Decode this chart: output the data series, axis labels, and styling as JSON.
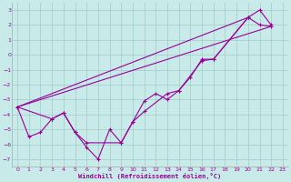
{
  "xlabel": "Windchill (Refroidissement éolien,°C)",
  "background_color": "#c8eae8",
  "grid_color": "#a0ccc8",
  "line_color": "#990099",
  "xlim": [
    -0.5,
    23.5
  ],
  "ylim": [
    -7.5,
    3.5
  ],
  "xticks": [
    0,
    1,
    2,
    3,
    4,
    5,
    6,
    7,
    8,
    9,
    10,
    11,
    12,
    13,
    14,
    15,
    16,
    17,
    18,
    19,
    20,
    21,
    22,
    23
  ],
  "yticks": [
    -7,
    -6,
    -5,
    -4,
    -3,
    -2,
    -1,
    0,
    1,
    2,
    3
  ],
  "line1_x": [
    0,
    1,
    2,
    3,
    4,
    5,
    6,
    7,
    8,
    9,
    10,
    11,
    12,
    13,
    14,
    15,
    16,
    17,
    20,
    21,
    22
  ],
  "line1_y": [
    -3.5,
    -5.5,
    -5.2,
    -4.3,
    -3.9,
    -5.2,
    -6.2,
    -7.0,
    -5.0,
    -5.9,
    -4.5,
    -3.1,
    -2.6,
    -3.0,
    -2.4,
    -1.5,
    -0.3,
    -0.3,
    2.5,
    3.0,
    2.0
  ],
  "line2_x": [
    0,
    3,
    4,
    5,
    6,
    9,
    10,
    11,
    13,
    14,
    16,
    17,
    20,
    21,
    22
  ],
  "line2_y": [
    -3.5,
    -4.3,
    -3.9,
    -5.2,
    -5.9,
    -5.9,
    -4.5,
    -3.8,
    -2.6,
    -2.4,
    -0.4,
    -0.3,
    2.5,
    2.0,
    1.9
  ],
  "line3_x": [
    0,
    22
  ],
  "line3_y": [
    -3.5,
    1.9
  ],
  "line4_x": [
    0,
    20
  ],
  "line4_y": [
    -3.5,
    2.5
  ]
}
